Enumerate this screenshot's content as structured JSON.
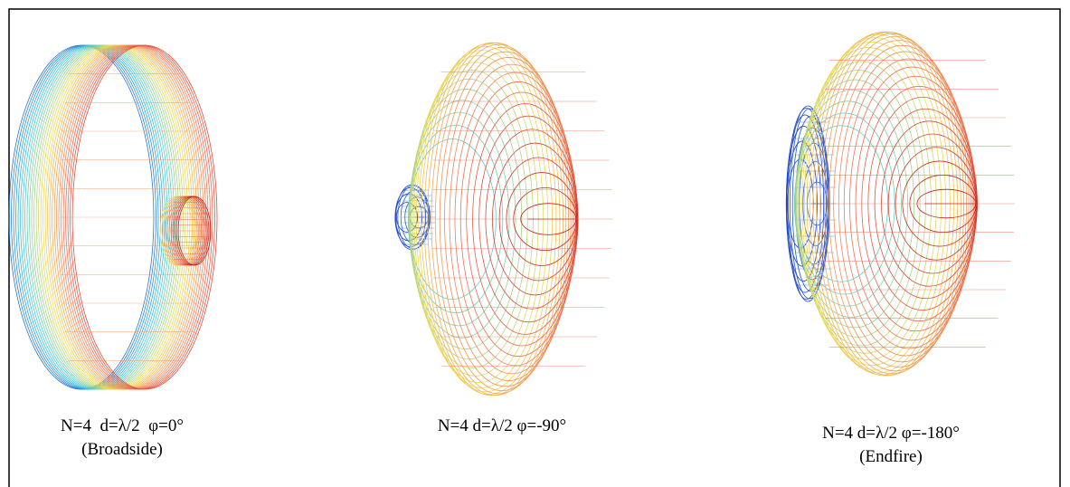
{
  "panels": [
    {
      "caption": [
        "N=4  d=λ/2  φ=0°",
        "(Broadside)"
      ]
    },
    {
      "caption": [
        "N=4 d=λ/2 φ=-90°"
      ]
    },
    {
      "caption": [
        "N=4 d=λ/2 φ=-180°",
        "(Endfire)"
      ]
    }
  ]
}
